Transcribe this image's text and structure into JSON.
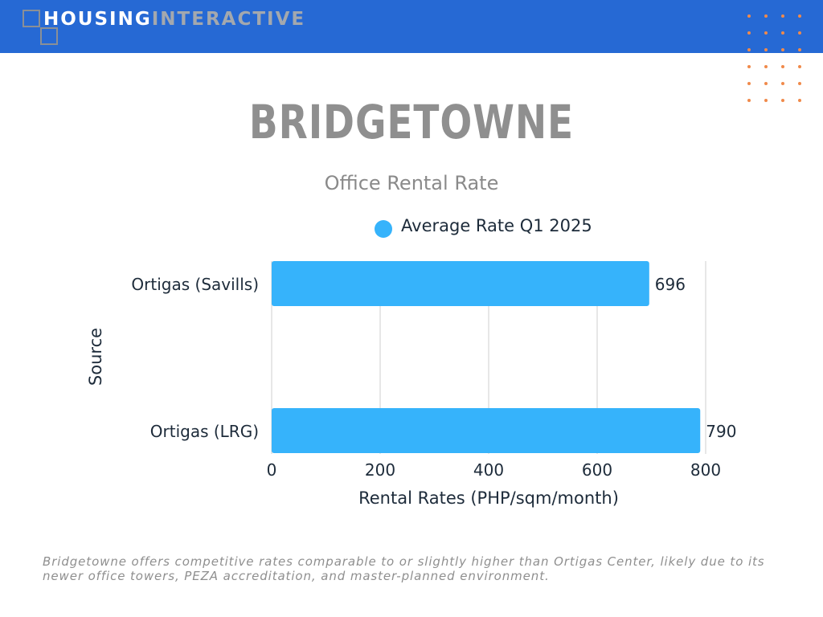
{
  "brand": {
    "name_part1": "HOUSING",
    "name_part2": "INTERACTIVE",
    "header_color": "#2669d4",
    "accent_color": "#f08a4b"
  },
  "title": "BRIDGETOWNE",
  "subtitle": "Office Rental Rate",
  "chart_data": {
    "type": "bar",
    "orientation": "horizontal",
    "categories": [
      "Ortigas (Savills)",
      "Ortigas (LRG)"
    ],
    "series": [
      {
        "name": "Average Rate Q1 2025",
        "values": [
          696,
          790
        ],
        "color": "#36b3fb"
      }
    ],
    "xlabel": "Rental Rates (PHP/sqm/month)",
    "ylabel": "Source",
    "xlim": [
      0,
      800
    ],
    "xticks": [
      0,
      200,
      400,
      600,
      800
    ],
    "grid": true,
    "legend_position": "top",
    "data_labels": true
  },
  "caption": "Bridgetowne offers competitive rates comparable to or slightly higher than Ortigas Center, likely due to its newer office towers, PEZA accreditation, and master-planned environment."
}
